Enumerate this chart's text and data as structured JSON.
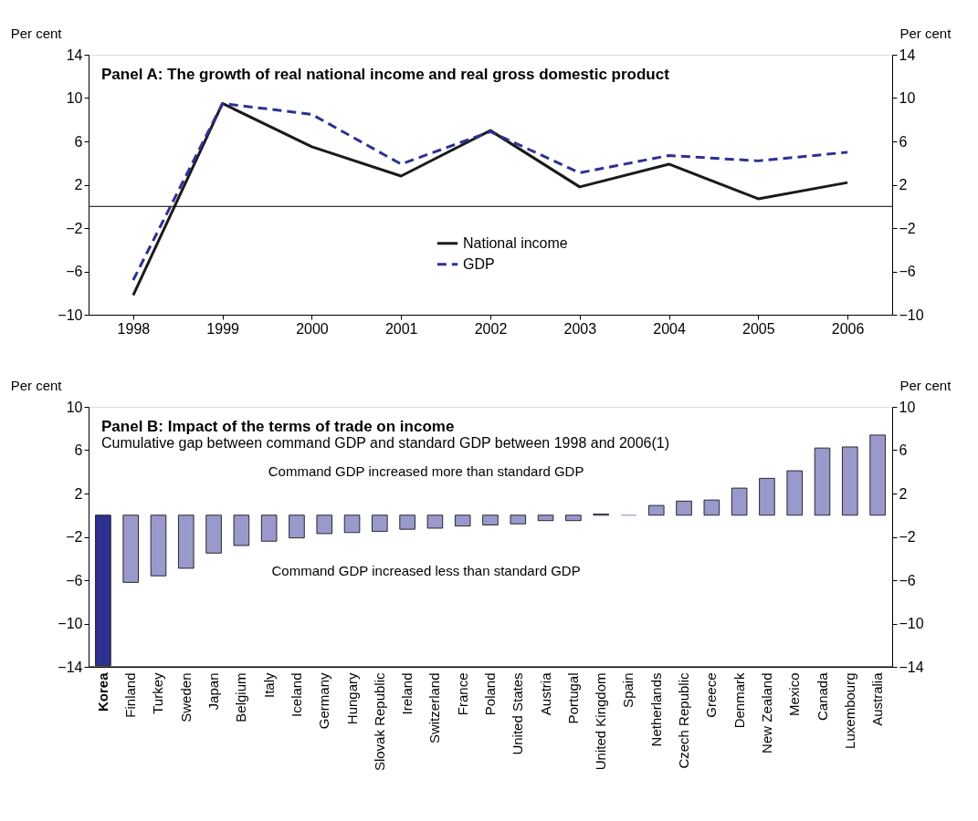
{
  "chart_data": [
    {
      "type": "line",
      "title": "Panel A: The growth of real national income and real gross domestic product",
      "categories": [
        "1998",
        "1999",
        "2000",
        "2001",
        "2002",
        "2003",
        "2004",
        "2005",
        "2006"
      ],
      "series": [
        {
          "name": "National income",
          "color": "#1a1a1a",
          "line_style": "solid",
          "values": [
            -8.2,
            9.5,
            5.5,
            2.8,
            7.0,
            1.8,
            3.9,
            0.7,
            2.2
          ]
        },
        {
          "name": "GDP",
          "color": "#2e3192",
          "line_style": "dashed",
          "values": [
            -6.8,
            9.5,
            8.5,
            3.9,
            6.9,
            3.1,
            4.7,
            4.2,
            5.0
          ]
        }
      ],
      "ylabel": "Per cent",
      "y2label": "Per cent",
      "ylim": [
        -10,
        14
      ],
      "yticks": [
        -10,
        -6,
        -2,
        2,
        6,
        10,
        14
      ],
      "y2lim": [
        -10,
        14
      ],
      "y2ticks": [
        -10,
        -6,
        -2,
        2,
        6,
        10,
        14
      ],
      "ref_lines": [
        {
          "axis": "y",
          "value": 0
        }
      ],
      "legend": "bottom",
      "grid": false
    },
    {
      "type": "bar",
      "title": "Panel B:  Impact of the terms of trade on income",
      "subtitle": "Cumulative gap between command GDP and standard GDP between 1998 and 2006(1)",
      "categories": [
        "Korea",
        "Finland",
        "Turkey",
        "Sweden",
        "Japan",
        "Belgium",
        "Italy",
        "Iceland",
        "Germany",
        "Hungary",
        "Slovak Republic",
        "Ireland",
        "Switzerland",
        "France",
        "Poland",
        "United States",
        "Austria",
        "Portugal",
        "United Kingdom",
        "Spain",
        "Netherlands",
        "Czech Republic",
        "Greece",
        "Denmark",
        "New Zealand",
        "Mexico",
        "Canada",
        "Luxembourg",
        "Australia"
      ],
      "values": [
        -13.9,
        -6.2,
        -5.6,
        -4.9,
        -3.5,
        -2.8,
        -2.4,
        -2.1,
        -1.7,
        -1.6,
        -1.5,
        -1.3,
        -1.2,
        -1.0,
        -0.9,
        -0.8,
        -0.5,
        -0.5,
        0.1,
        0,
        0.9,
        1.3,
        1.4,
        2.5,
        3.4,
        4.1,
        6.2,
        6.3,
        7.4
      ],
      "colors": [
        "#2e3192",
        "#9999cc",
        "#9999cc",
        "#9999cc",
        "#9999cc",
        "#9999cc",
        "#9999cc",
        "#9999cc",
        "#9999cc",
        "#9999cc",
        "#9999cc",
        "#9999cc",
        "#9999cc",
        "#9999cc",
        "#9999cc",
        "#9999cc",
        "#9999cc",
        "#9999cc",
        "#9999cc",
        "#9999cc",
        "#9999cc",
        "#9999cc",
        "#9999cc",
        "#9999cc",
        "#9999cc",
        "#9999cc",
        "#9999cc",
        "#9999cc",
        "#9999cc"
      ],
      "ylabel": "Per cent",
      "y2label": "Per cent",
      "ylim": [
        -14,
        10
      ],
      "yticks": [
        -14,
        -10,
        -6,
        -2,
        2,
        6,
        10
      ],
      "y2lim": [
        -14,
        10
      ],
      "y2ticks": [
        -14,
        -10,
        -6,
        -2,
        2,
        6,
        10
      ],
      "annotations": [
        "Command GDP increased more than standard GDP",
        "Command GDP increased less than standard GDP"
      ],
      "grid": false
    }
  ]
}
